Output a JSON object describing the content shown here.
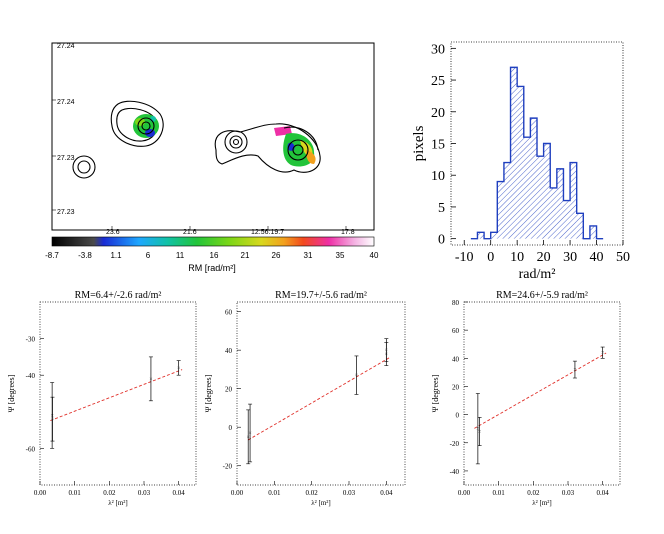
{
  "map_panel": {
    "dec_ticks": [
      "27.24",
      "27.24",
      "27.23",
      "27.23"
    ],
    "ra_ticks": [
      "23.6",
      "21.6",
      "12:56:19.7",
      "17.8"
    ],
    "colorbar": {
      "label": "RM  [rad/m²]",
      "ticks": [
        "-8.7",
        "-3.8",
        "1.1",
        "6",
        "11",
        "16",
        "21",
        "26",
        "31",
        "35",
        "40"
      ],
      "colors": [
        "#000000",
        "#5a5a5a",
        "#1a2bd4",
        "#1ea7ff",
        "#11c2a5",
        "#22c43a",
        "#7bd617",
        "#d8d81e",
        "#f2a11e",
        "#f24a1e",
        "#ee2fa6",
        "#f4b3e3",
        "#ffffff"
      ]
    }
  },
  "chart_data": [
    {
      "type": "histogram",
      "title": "",
      "xlabel": "rad/m²",
      "ylabel": "pixels",
      "xlim": [
        -15,
        50
      ],
      "ylim": [
        -1,
        31
      ],
      "xticks": [
        -10,
        0,
        10,
        20,
        30,
        40,
        50
      ],
      "yticks": [
        0,
        5,
        10,
        15,
        20,
        25,
        30
      ],
      "bin_width": 2.5,
      "bins_start": -7.5,
      "counts": [
        0,
        1,
        0,
        1,
        9,
        12,
        27,
        24,
        16,
        19,
        13,
        15,
        8,
        11,
        6,
        12,
        4,
        0,
        2,
        0
      ],
      "hatch": "diagonal",
      "color": "#1f3fbf"
    },
    {
      "type": "scatter_errorbar_fit",
      "title": "RM=6.4+/-2.6 rad/m²",
      "xlabel": "λ² [m²]",
      "ylabel": "Ψ [degrees]",
      "xlim": [
        0.0,
        0.045
      ],
      "ylim": [
        -70,
        -20
      ],
      "xticks": [
        0.0,
        0.01,
        0.02,
        0.03,
        0.04
      ],
      "yticks": [
        -60,
        -40,
        -30
      ],
      "xtick_labels": [
        "0.00",
        "0.01",
        "0.02",
        "0.03",
        "0.04"
      ],
      "points": [
        {
          "x": 0.0035,
          "y": -51,
          "err": 9
        },
        {
          "x": 0.0036,
          "y": -52,
          "err": 6
        },
        {
          "x": 0.032,
          "y": -41,
          "err": 6
        },
        {
          "x": 0.04,
          "y": -38,
          "err": 2
        }
      ],
      "fit": {
        "slope": 6.4,
        "intercept_deg": -53.5,
        "color": "#e0302a"
      }
    },
    {
      "type": "scatter_errorbar_fit",
      "title": "RM=19.7+/-5.6 rad/m²",
      "xlabel": "λ² [m²]",
      "ylabel": "Ψ [degrees]",
      "xlim": [
        0.0,
        0.045
      ],
      "ylim": [
        -30,
        65
      ],
      "xticks": [
        0.0,
        0.01,
        0.02,
        0.03,
        0.04
      ],
      "yticks": [
        -20,
        0,
        20,
        40,
        60
      ],
      "xtick_labels": [
        "0.00",
        "0.01",
        "0.02",
        "0.03",
        "0.04"
      ],
      "points": [
        {
          "x": 0.003,
          "y": -5,
          "err": 14
        },
        {
          "x": 0.0035,
          "y": -3,
          "err": 15
        },
        {
          "x": 0.032,
          "y": 27,
          "err": 10
        },
        {
          "x": 0.04,
          "y": 38,
          "err": 6
        },
        {
          "x": 0.04,
          "y": 40,
          "err": 6
        }
      ],
      "fit": {
        "slope": 19.7,
        "intercept_deg": -10,
        "color": "#e0302a"
      }
    },
    {
      "type": "scatter_errorbar_fit",
      "title": "RM=24.6+/-5.9 rad/m²",
      "xlabel": "λ² [m²]",
      "ylabel": "Ψ [degrees]",
      "xlim": [
        0.0,
        0.045
      ],
      "ylim": [
        -50,
        80
      ],
      "xticks": [
        0.0,
        0.01,
        0.02,
        0.03,
        0.04
      ],
      "yticks": [
        -40,
        -20,
        0,
        20,
        40,
        60,
        80
      ],
      "xtick_labels": [
        "0.00",
        "0.01",
        "0.02",
        "0.03",
        "0.04"
      ],
      "points": [
        {
          "x": 0.004,
          "y": -10,
          "err": 25
        },
        {
          "x": 0.0045,
          "y": -12,
          "err": 10
        },
        {
          "x": 0.032,
          "y": 32,
          "err": 6
        },
        {
          "x": 0.04,
          "y": 44,
          "err": 4
        }
      ],
      "fit": {
        "slope": 24.6,
        "intercept_deg": -14,
        "color": "#e0302a"
      }
    }
  ]
}
